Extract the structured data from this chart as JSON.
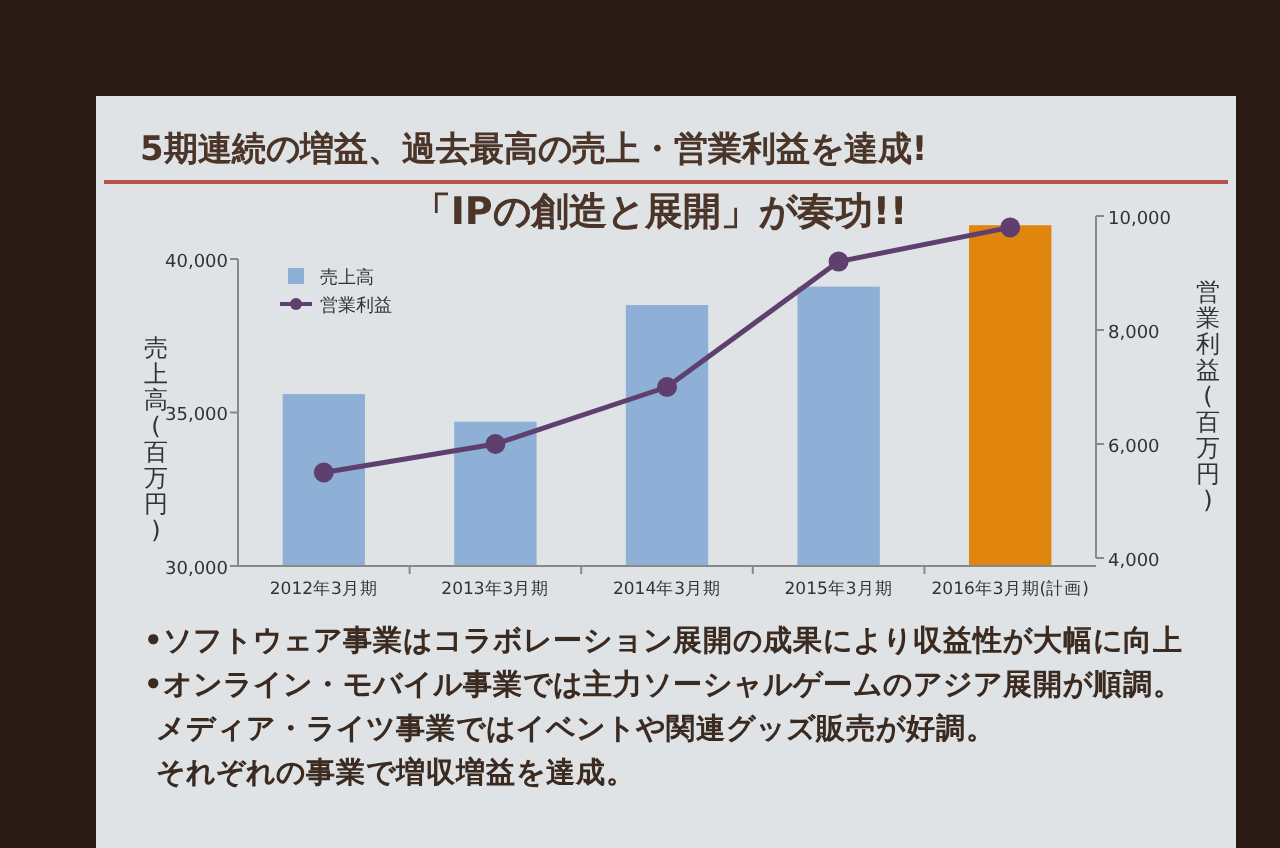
{
  "chart_data": {
    "type": "bar",
    "title": "5期連続の増益、過去最高の売上・営業利益を達成!",
    "subtitle": "「IPの創造と展開」が奏功!!",
    "ylabel": "売上高(百万円)",
    "y2label": "営業利益(百万円)",
    "categories": [
      "2012年3月期",
      "2013年3月期",
      "2014年3月期",
      "2015年3月期",
      "2016年3月期(計画)"
    ],
    "series": [
      {
        "name": "売上高",
        "type": "bar",
        "colors": [
          "#8fb0d6",
          "#8fb0d6",
          "#8fb0d6",
          "#8fb0d6",
          "#e0860f"
        ],
        "values": [
          35600,
          34700,
          38500,
          39100,
          41100
        ]
      },
      {
        "name": "営業利益",
        "type": "line",
        "axis": "y2",
        "color": "#5e3f6e",
        "marker": "circle",
        "values": [
          5500,
          6000,
          7000,
          9200,
          9800
        ]
      }
    ],
    "ylim": [
      30000,
      41400
    ],
    "yticks": [
      {
        "value": 30000,
        "label": "30,000"
      },
      {
        "value": 35000,
        "label": "35,000"
      },
      {
        "value": 40000,
        "label": "40,000"
      }
    ],
    "y2lim": [
      4000,
      10000
    ],
    "y2ticks": [
      {
        "value": 4000,
        "label": "4,000"
      },
      {
        "value": 6000,
        "label": "6,000"
      },
      {
        "value": 8000,
        "label": "8,000"
      },
      {
        "value": 10000,
        "label": "10,000"
      }
    ],
    "legend": "top left",
    "grid": false,
    "annotations": [
      "•ソフトウェア事業はコラボレーション展開の成果により収益性が大幅に向上",
      "•オンライン・モバイル事業では主力ソーシャルゲームのアジア展開が順調。",
      "メディア・ライツ事業ではイベントや関連グッズ販売が好調。",
      "それぞれの事業で増収増益を達成。"
    ]
  }
}
